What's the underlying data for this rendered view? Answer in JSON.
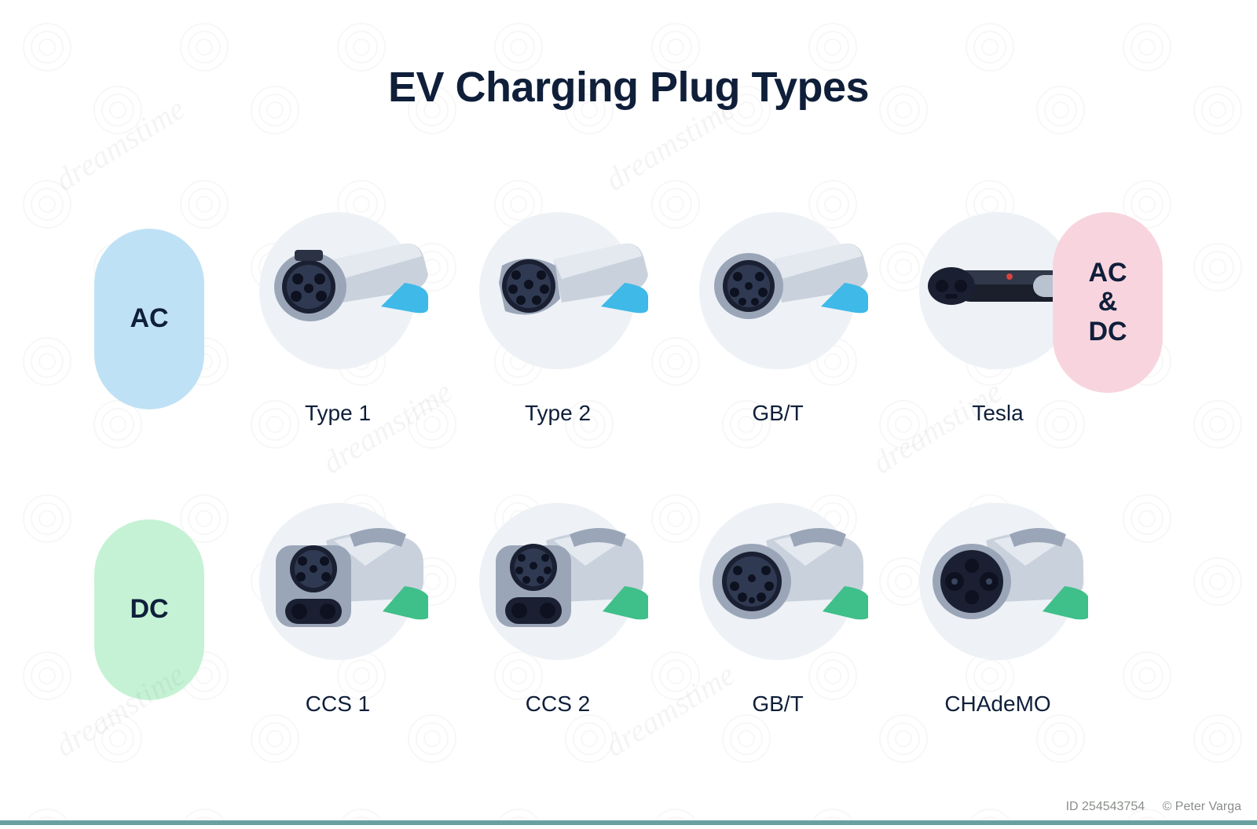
{
  "title": "EV Charging Plug Types",
  "title_color": "#0f1f3a",
  "title_fontsize": 54,
  "background_color": "#ffffff",
  "label_color": "#0f1f3a",
  "label_fontsize": 28,
  "pills": {
    "ac": {
      "label": "AC",
      "bg": "#bfe1f5",
      "text_color": "#0f1f3a"
    },
    "dc": {
      "label": "DC",
      "bg": "#c5f2d4",
      "text_color": "#0f1f3a"
    },
    "acdc": {
      "label": "AC\n&\nDC",
      "bg": "#f8d5de",
      "text_color": "#0f1f3a"
    }
  },
  "circle_bg": "#eef2f6",
  "plug_body_light": "#c9d1dc",
  "plug_body_mid": "#9aa6b8",
  "plug_body_dark": "#2a3244",
  "plug_face": "#1a2032",
  "rows": [
    {
      "key": "ac",
      "cable_color": "#3fb9e8",
      "plugs": [
        {
          "label": "Type 1",
          "icon": "type1"
        },
        {
          "label": "Type 2",
          "icon": "type2"
        },
        {
          "label": "GB/T",
          "icon": "gbt-ac"
        },
        {
          "label": "Tesla",
          "icon": "tesla",
          "cable_color": "#e0353f",
          "body_dark": "#1a1f2b",
          "body_light": "#b9c2cf"
        }
      ]
    },
    {
      "key": "dc",
      "cable_color": "#3fbf8a",
      "plugs": [
        {
          "label": "CCS 1",
          "icon": "ccs1"
        },
        {
          "label": "CCS 2",
          "icon": "ccs2"
        },
        {
          "label": "GB/T",
          "icon": "gbt-dc"
        },
        {
          "label": "CHAdeMO",
          "icon": "chademo"
        }
      ]
    }
  ],
  "footer_bar_color": "#6aa0a0",
  "credit": {
    "id": "ID 254543754",
    "author": "© Peter Varga",
    "color": "#8a8f8a"
  },
  "watermark_text": "dreamstime"
}
